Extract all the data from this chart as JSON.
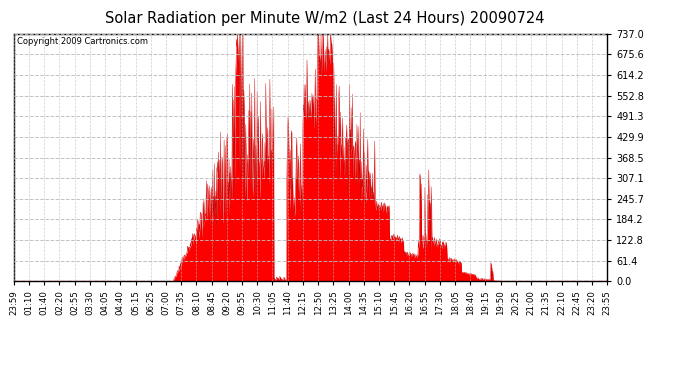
{
  "title": "Solar Radiation per Minute W/m2 (Last 24 Hours) 20090724",
  "copyright_text": "Copyright 2009 Cartronics.com",
  "yticks": [
    0.0,
    61.4,
    122.8,
    184.2,
    245.7,
    307.1,
    368.5,
    429.9,
    491.3,
    552.8,
    614.2,
    675.6,
    737.0
  ],
  "ymax": 737.0,
  "ymin": 0.0,
  "fill_color": "#FF0000",
  "line_color": "#CC0000",
  "bg_color": "#FFFFFF",
  "grid_color": "#BBBBBB",
  "dashed_line_color": "#FF0000",
  "xtick_labels": [
    "23:59",
    "01:10",
    "01:40",
    "02:20",
    "02:55",
    "03:30",
    "04:05",
    "04:40",
    "05:15",
    "06:25",
    "07:00",
    "07:35",
    "08:10",
    "08:45",
    "09:20",
    "09:55",
    "10:30",
    "11:05",
    "11:40",
    "12:15",
    "12:50",
    "13:25",
    "14:00",
    "14:35",
    "15:10",
    "15:45",
    "16:20",
    "16:55",
    "17:30",
    "18:05",
    "18:40",
    "19:15",
    "19:50",
    "20:25",
    "21:00",
    "21:35",
    "22:10",
    "22:45",
    "23:20",
    "23:55"
  ]
}
